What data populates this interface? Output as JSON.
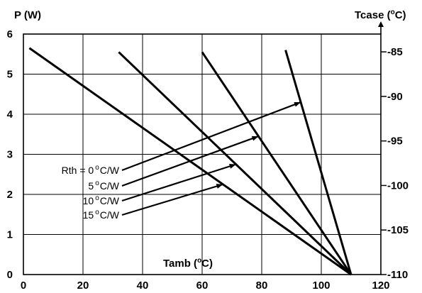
{
  "chart_data": {
    "type": "line",
    "title": "",
    "xlabel": "Tamb (",
    "xlabel_sup": "o",
    "xlabel_end": "C)",
    "ylabel": "P (W)",
    "y2label": "Tcase (",
    "y2label_sup": "o",
    "y2label_end": "C)",
    "xlim": [
      0,
      120
    ],
    "ylim": [
      0,
      6
    ],
    "y2lim": [
      -110,
      -83
    ],
    "grid": true,
    "x_ticks": [
      "0",
      "20",
      "40",
      "60",
      "80",
      "100",
      "120"
    ],
    "y_ticks": [
      "0",
      "1",
      "2",
      "3",
      "4",
      "5",
      "6"
    ],
    "y2_ticks": [
      "-85",
      "-90",
      "-95",
      "-100",
      "-105",
      "-110"
    ],
    "series": [
      {
        "name": "Rth = 0°C/W",
        "x": [
          2,
          110
        ],
        "y": [
          5.65,
          0.0
        ]
      },
      {
        "name": "5°C/W",
        "x": [
          32,
          110
        ],
        "y": [
          5.55,
          0.0
        ]
      },
      {
        "name": "10°C/W",
        "x": [
          60,
          110
        ],
        "y": [
          5.55,
          0.0
        ]
      },
      {
        "name": "15°C/W",
        "x": [
          88,
          110
        ],
        "y": [
          5.6,
          0.0
        ]
      }
    ],
    "legend_prefix": "Rth = ",
    "legend_labels": [
      {
        "value": "0",
        "sup": "o",
        "unit": "C/W"
      },
      {
        "value": "5",
        "sup": "o",
        "unit": "C/W"
      },
      {
        "value": "10",
        "sup": "o",
        "unit": "C/W"
      },
      {
        "value": "15",
        "sup": "o",
        "unit": "C/W"
      }
    ],
    "annotation_arrows": [
      {
        "from_label": 0,
        "to_line": 3,
        "y": 4.3
      },
      {
        "from_label": 1,
        "to_line": 2,
        "y": 3.45
      },
      {
        "from_label": 2,
        "to_line": 1,
        "y": 2.75
      },
      {
        "from_label": 3,
        "to_line": 0,
        "y": 2.25
      }
    ]
  }
}
